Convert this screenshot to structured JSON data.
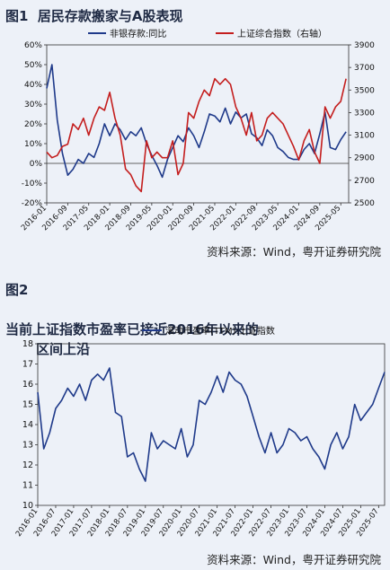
{
  "figure1": {
    "number": "图1",
    "title": "居民存款搬家与A股表现",
    "source": "资料来源：Wind，粤开证券研究院"
  },
  "figure2": {
    "number": "图2",
    "title_line1": "当前上证指数市盈率已接近2016年以来的",
    "title_line2": "区间上沿",
    "source": "资料来源：Wind，粤开证券研究院"
  },
  "chart_data": [
    {
      "type": "line",
      "legend_position": "top",
      "grid": false,
      "x_ticks": [
        "2016-01",
        "2016-09",
        "2017-05",
        "2018-01",
        "2018-09",
        "2019-05",
        "2020-01",
        "2020-09",
        "2021-05",
        "2022-01",
        "2022-09",
        "2023-05",
        "2024-01",
        "2024-09",
        "2025-05"
      ],
      "y_left": {
        "min": -20,
        "max": 60,
        "ticks": [
          "-20%",
          "-10%",
          "0%",
          "10%",
          "20%",
          "30%",
          "40%",
          "50%",
          "60%"
        ]
      },
      "y_right": {
        "min": 2500,
        "max": 3900,
        "ticks": [
          "2500",
          "2700",
          "2900",
          "3100",
          "3300",
          "3500",
          "3700",
          "3900"
        ]
      },
      "series": [
        {
          "name": "非银存款:同比",
          "axis": "left",
          "color": "#1f3a8a",
          "x": [
            "2016-01",
            "2016-03",
            "2016-05",
            "2016-07",
            "2016-09",
            "2016-11",
            "2017-01",
            "2017-03",
            "2017-05",
            "2017-07",
            "2017-09",
            "2017-11",
            "2018-01",
            "2018-03",
            "2018-05",
            "2018-07",
            "2018-09",
            "2018-11",
            "2019-01",
            "2019-03",
            "2019-05",
            "2019-07",
            "2019-09",
            "2019-11",
            "2020-01",
            "2020-03",
            "2020-05",
            "2020-07",
            "2020-09",
            "2020-11",
            "2021-01",
            "2021-03",
            "2021-05",
            "2021-07",
            "2021-09",
            "2021-11",
            "2022-01",
            "2022-03",
            "2022-05",
            "2022-07",
            "2022-09",
            "2022-11",
            "2023-01",
            "2023-03",
            "2023-05",
            "2023-07",
            "2023-09",
            "2023-11",
            "2024-01",
            "2024-03",
            "2024-05",
            "2024-07",
            "2024-09",
            "2024-11",
            "2025-01",
            "2025-03",
            "2025-05",
            "2025-07"
          ],
          "values": [
            38,
            50,
            22,
            5,
            -6,
            -3,
            2,
            0,
            5,
            3,
            10,
            20,
            14,
            20,
            17,
            12,
            16,
            14,
            18,
            10,
            4,
            -1,
            -7,
            2,
            8,
            14,
            11,
            18,
            14,
            8,
            16,
            25,
            24,
            21,
            28,
            20,
            26,
            23,
            25,
            15,
            13,
            9,
            17,
            14,
            8,
            6,
            3,
            2,
            2,
            7,
            10,
            5,
            15,
            26,
            8,
            7,
            12,
            16
          ]
        },
        {
          "name": "上证综合指数（右轴）",
          "axis": "right",
          "color": "#c41e1e",
          "x": [
            "2016-01",
            "2016-03",
            "2016-05",
            "2016-07",
            "2016-09",
            "2016-11",
            "2017-01",
            "2017-03",
            "2017-05",
            "2017-07",
            "2017-09",
            "2017-11",
            "2018-01",
            "2018-03",
            "2018-05",
            "2018-07",
            "2018-09",
            "2018-11",
            "2019-01",
            "2019-03",
            "2019-05",
            "2019-07",
            "2019-09",
            "2019-11",
            "2020-01",
            "2020-03",
            "2020-05",
            "2020-07",
            "2020-09",
            "2020-11",
            "2021-01",
            "2021-03",
            "2021-05",
            "2021-07",
            "2021-09",
            "2021-11",
            "2022-01",
            "2022-03",
            "2022-05",
            "2022-07",
            "2022-09",
            "2022-11",
            "2023-01",
            "2023-03",
            "2023-05",
            "2023-07",
            "2023-09",
            "2023-11",
            "2024-01",
            "2024-03",
            "2024-05",
            "2024-07",
            "2024-09",
            "2024-11",
            "2025-01",
            "2025-03",
            "2025-05",
            "2025-07"
          ],
          "values": [
            2950,
            2900,
            2920,
            3000,
            3020,
            3200,
            3150,
            3250,
            3100,
            3250,
            3350,
            3320,
            3480,
            3250,
            3100,
            2800,
            2750,
            2650,
            2600,
            3050,
            2900,
            2950,
            2900,
            2900,
            3050,
            2750,
            2850,
            3300,
            3250,
            3400,
            3500,
            3450,
            3600,
            3550,
            3600,
            3550,
            3350,
            3250,
            3100,
            3300,
            3050,
            3100,
            3250,
            3300,
            3250,
            3200,
            3100,
            3000,
            2880,
            3050,
            3150,
            2950,
            2850,
            3350,
            3250,
            3350,
            3400,
            3600
          ]
        }
      ]
    },
    {
      "type": "line",
      "legend_position": "top",
      "grid": false,
      "x_ticks": [
        "2016-01",
        "2016-07",
        "2017-01",
        "2017-07",
        "2018-01",
        "2018-07",
        "2019-01",
        "2019-07",
        "2020-01",
        "2020-07",
        "2021-01",
        "2021-07",
        "2022-01",
        "2022-07",
        "2023-01",
        "2023-07",
        "2024-01",
        "2024-07",
        "2025-01",
        "2025-07"
      ],
      "ylim": [
        10,
        18
      ],
      "y_ticks": [
        "10",
        "11",
        "12",
        "13",
        "14",
        "15",
        "16",
        "17",
        "18"
      ],
      "series": [
        {
          "name": "滚动市盈率(TTM):上证指数",
          "color": "#1f3a8a",
          "x": [
            "2016-01",
            "2016-03",
            "2016-05",
            "2016-07",
            "2016-09",
            "2016-11",
            "2017-01",
            "2017-03",
            "2017-05",
            "2017-07",
            "2017-09",
            "2017-11",
            "2018-01",
            "2018-03",
            "2018-05",
            "2018-07",
            "2018-09",
            "2018-11",
            "2019-01",
            "2019-03",
            "2019-05",
            "2019-07",
            "2019-09",
            "2019-11",
            "2020-01",
            "2020-03",
            "2020-05",
            "2020-07",
            "2020-09",
            "2020-11",
            "2021-01",
            "2021-03",
            "2021-05",
            "2021-07",
            "2021-09",
            "2021-11",
            "2022-01",
            "2022-03",
            "2022-05",
            "2022-07",
            "2022-09",
            "2022-11",
            "2023-01",
            "2023-03",
            "2023-05",
            "2023-07",
            "2023-09",
            "2023-11",
            "2024-01",
            "2024-03",
            "2024-05",
            "2024-07",
            "2024-09",
            "2024-11",
            "2025-01",
            "2025-03",
            "2025-05",
            "2025-07",
            "2025-09"
          ],
          "values": [
            15.6,
            12.8,
            13.6,
            14.8,
            15.2,
            15.8,
            15.4,
            16.0,
            15.2,
            16.2,
            16.5,
            16.2,
            16.8,
            14.6,
            14.4,
            12.4,
            12.6,
            11.8,
            11.2,
            13.6,
            12.8,
            13.2,
            13.0,
            12.8,
            13.8,
            12.4,
            13.0,
            15.2,
            15.0,
            15.6,
            16.4,
            15.6,
            16.6,
            16.2,
            16.0,
            15.4,
            14.4,
            13.4,
            12.6,
            13.6,
            12.6,
            13.0,
            13.8,
            13.6,
            13.2,
            13.4,
            12.8,
            12.4,
            11.8,
            13.0,
            13.6,
            12.8,
            13.4,
            15.0,
            14.2,
            14.6,
            15.0,
            15.8,
            16.6
          ]
        }
      ]
    }
  ]
}
